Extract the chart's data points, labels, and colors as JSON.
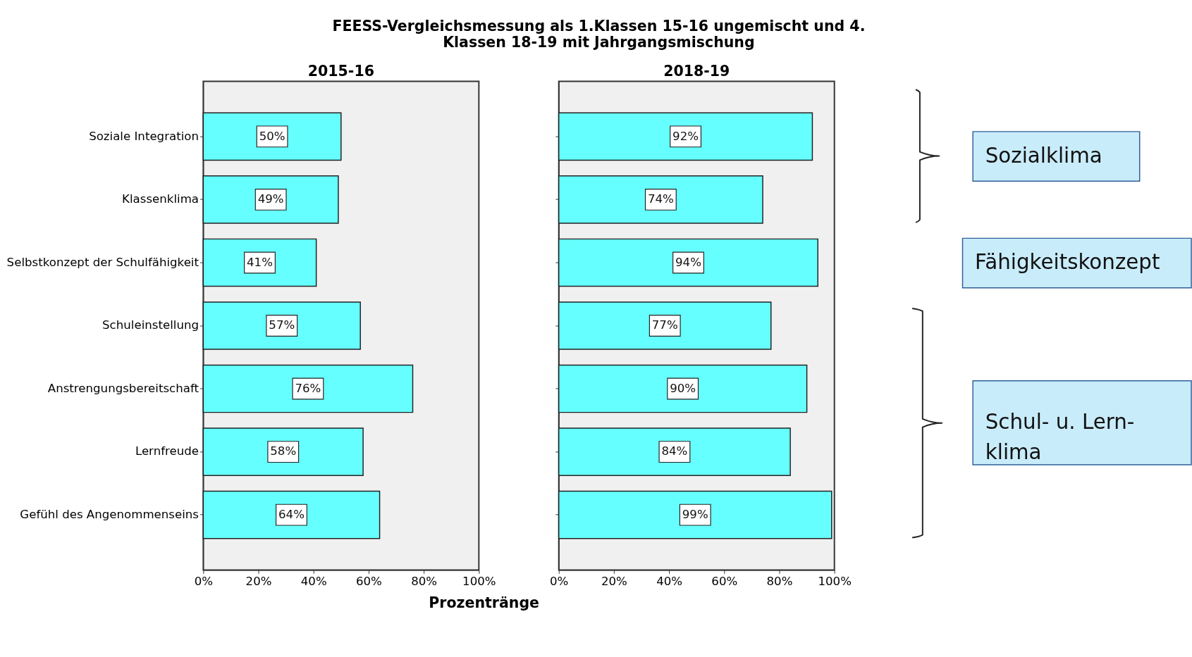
{
  "chart_data": [
    {
      "type": "bar",
      "orientation": "horizontal",
      "title": "2015-16",
      "xlabel": "Prozentränge",
      "categories": [
        "Soziale Integration",
        "Klassenklima",
        "Selbstkonzept der Schulfähigkeit",
        "Schuleinstellung",
        "Anstrengungsbereitschaft",
        "Lernfreude",
        "Gefühl des Angenommenseins"
      ],
      "values": [
        50,
        49,
        41,
        57,
        76,
        58,
        64
      ],
      "color": "#66ffff",
      "value_labels": [
        "50%",
        "49%",
        "41%",
        "57%",
        "76%",
        "58%",
        "64%"
      ],
      "xlim": [
        0,
        100
      ],
      "xticks": [
        {
          "value": 0,
          "label": "0%"
        },
        {
          "value": 20,
          "label": "20%"
        },
        {
          "value": 40,
          "label": "40%"
        },
        {
          "value": 60,
          "label": "60%"
        },
        {
          "value": 80,
          "label": "80%"
        },
        {
          "value": 100,
          "label": "100%"
        }
      ],
      "grid": false
    },
    {
      "type": "bar",
      "orientation": "horizontal",
      "title": "2018-19",
      "categories": [
        null,
        null,
        null,
        null,
        null,
        null,
        null
      ],
      "values": [
        92,
        74,
        94,
        77,
        90,
        84,
        99
      ],
      "color": "#66ffff",
      "value_labels": [
        "92%",
        "74%",
        "94%",
        "77%",
        "90%",
        "84%",
        "99%"
      ],
      "xlim": [
        0,
        100
      ],
      "xticks": [
        {
          "value": 0,
          "label": "0%"
        },
        {
          "value": 20,
          "label": "20%"
        },
        {
          "value": 40,
          "label": "40%"
        },
        {
          "value": 60,
          "label": "60%"
        },
        {
          "value": 80,
          "label": "80%"
        },
        {
          "value": 100,
          "label": "100%"
        }
      ],
      "grid": false
    },
    {
      "type": "other",
      "title": [
        "FEESS-Vergleichsmessung  als 1.Klassen 15-16  ungemischt und 4.",
        "Klassen 18-19 mit Jahrgangsmischung"
      ],
      "annotations": [
        "Sozialklima",
        "Fähigkeitskonzept",
        "Schul- u. Lern-\nklima"
      ]
    }
  ]
}
